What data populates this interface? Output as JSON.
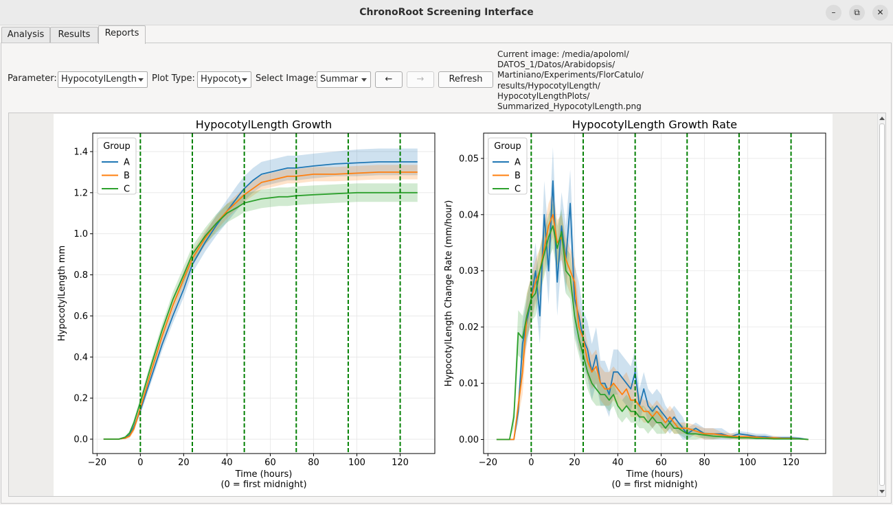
{
  "window": {
    "title": "ChronoRoot Screening Interface",
    "minimize_icon": "minimize-icon",
    "maximize_icon": "maximize-icon",
    "close_icon": "close-icon"
  },
  "tabs": [
    {
      "label": "Analysis",
      "active": false
    },
    {
      "label": "Results",
      "active": false
    },
    {
      "label": "Reports",
      "active": true
    }
  ],
  "controls": {
    "parameter_label": "Parameter:",
    "parameter_value": "HypocotylLength",
    "plot_type_label": "Plot Type:",
    "plot_type_value": "Hypocoty",
    "select_image_label": "Select Image:",
    "select_image_value": "Summar",
    "prev_button": "←",
    "next_button": "→",
    "refresh_button": "Refresh",
    "current_image": "Current image: /media/apoloml/\nDATOS_1/Datos/Arabidopsis/\nMartiniano/Experiments/FlorCatulo/\nresults/HypocotylLength/\nHypocotylLengthPlots/\nSummarized_HypocotylLength.png"
  },
  "colors": {
    "A": "#1f77b4",
    "B": "#ff7f0e",
    "C": "#2ca02c",
    "day_line": "#008000"
  },
  "chart_data": [
    {
      "type": "line",
      "title": "HypocotylLength Growth",
      "xlabel": "Time (hours)\n(0 = first midnight)",
      "ylabel": "HypocotylLength mm",
      "xlim": [
        -22,
        136
      ],
      "ylim": [
        -0.07,
        1.49
      ],
      "xticks": [
        -20,
        0,
        20,
        40,
        60,
        80,
        100,
        120
      ],
      "yticks": [
        0.0,
        0.2,
        0.4,
        0.6,
        0.8,
        1.0,
        1.2,
        1.4
      ],
      "vlines": [
        0,
        24,
        48,
        72,
        96,
        120
      ],
      "grid": true,
      "legend": {
        "title": "Group",
        "position": "top-left"
      },
      "series": [
        {
          "name": "A",
          "x": [
            -17,
            -10,
            -7,
            -5,
            -3,
            0,
            5,
            10,
            15,
            20,
            24,
            30,
            35,
            40,
            45,
            48,
            52,
            56,
            60,
            64,
            68,
            72,
            80,
            90,
            100,
            110,
            120,
            128
          ],
          "y": [
            0,
            0,
            0.005,
            0.02,
            0.06,
            0.14,
            0.3,
            0.46,
            0.6,
            0.73,
            0.85,
            0.96,
            1.04,
            1.11,
            1.18,
            1.22,
            1.26,
            1.29,
            1.3,
            1.31,
            1.32,
            1.32,
            1.33,
            1.34,
            1.345,
            1.35,
            1.35,
            1.35
          ],
          "band": [
            0.002,
            0.002,
            0.005,
            0.01,
            0.015,
            0.02,
            0.025,
            0.03,
            0.035,
            0.04,
            0.04,
            0.045,
            0.05,
            0.055,
            0.06,
            0.06,
            0.06,
            0.06,
            0.06,
            0.06,
            0.06,
            0.06,
            0.06,
            0.06,
            0.065,
            0.065,
            0.065,
            0.065
          ]
        },
        {
          "name": "B",
          "x": [
            -17,
            -10,
            -7,
            -5,
            -3,
            0,
            5,
            10,
            15,
            20,
            24,
            30,
            35,
            40,
            45,
            48,
            52,
            56,
            60,
            64,
            68,
            72,
            80,
            90,
            100,
            110,
            120,
            128
          ],
          "y": [
            0,
            0,
            0.005,
            0.015,
            0.05,
            0.15,
            0.33,
            0.5,
            0.65,
            0.78,
            0.88,
            0.98,
            1.05,
            1.11,
            1.16,
            1.19,
            1.22,
            1.25,
            1.26,
            1.27,
            1.28,
            1.28,
            1.29,
            1.29,
            1.295,
            1.3,
            1.3,
            1.3
          ],
          "band": [
            0.002,
            0.002,
            0.005,
            0.01,
            0.015,
            0.02,
            0.025,
            0.03,
            0.035,
            0.035,
            0.035,
            0.035,
            0.035,
            0.035,
            0.035,
            0.035,
            0.035,
            0.035,
            0.035,
            0.035,
            0.035,
            0.035,
            0.035,
            0.035,
            0.035,
            0.035,
            0.035,
            0.035
          ]
        },
        {
          "name": "C",
          "x": [
            -17,
            -10,
            -7,
            -5,
            -3,
            0,
            5,
            10,
            15,
            20,
            24,
            30,
            35,
            40,
            45,
            48,
            52,
            56,
            60,
            64,
            68,
            72,
            80,
            90,
            100,
            110,
            120,
            128
          ],
          "y": [
            0,
            0,
            0.01,
            0.03,
            0.08,
            0.18,
            0.36,
            0.53,
            0.68,
            0.8,
            0.9,
            0.99,
            1.05,
            1.1,
            1.13,
            1.15,
            1.16,
            1.17,
            1.175,
            1.18,
            1.18,
            1.185,
            1.19,
            1.195,
            1.2,
            1.2,
            1.2,
            1.2
          ],
          "band": [
            0.002,
            0.002,
            0.005,
            0.01,
            0.015,
            0.02,
            0.025,
            0.03,
            0.035,
            0.04,
            0.04,
            0.04,
            0.045,
            0.045,
            0.045,
            0.045,
            0.045,
            0.045,
            0.045,
            0.045,
            0.045,
            0.045,
            0.045,
            0.045,
            0.045,
            0.045,
            0.045,
            0.045
          ]
        }
      ]
    },
    {
      "type": "line",
      "title": "HypocotylLength Growth Rate",
      "xlabel": "Time (hours)\n(0 = first midnight)",
      "ylabel": "HypocotylLength Change Rate (mm/hour)",
      "xlim": [
        -22,
        136
      ],
      "ylim": [
        -0.0025,
        0.0545
      ],
      "xticks": [
        -20,
        0,
        20,
        40,
        60,
        80,
        100,
        120
      ],
      "yticks": [
        0.0,
        0.01,
        0.02,
        0.03,
        0.04,
        0.05
      ],
      "vlines": [
        0,
        24,
        48,
        72,
        96,
        120
      ],
      "grid": true,
      "legend": {
        "title": "Group",
        "position": "top-left"
      },
      "series": [
        {
          "name": "A",
          "x": [
            -16,
            -10,
            -8,
            -6,
            -4,
            -2,
            0,
            2,
            4,
            6,
            8,
            10,
            12,
            14,
            16,
            18,
            20,
            22,
            24,
            26,
            28,
            30,
            32,
            34,
            36,
            38,
            40,
            42,
            44,
            46,
            48,
            50,
            52,
            54,
            56,
            58,
            60,
            62,
            64,
            66,
            68,
            70,
            72,
            76,
            80,
            84,
            88,
            92,
            96,
            100,
            104,
            108,
            112,
            116,
            120,
            124,
            128
          ],
          "y": [
            0,
            0,
            0,
            0.005,
            0.017,
            0.021,
            0.025,
            0.03,
            0.022,
            0.04,
            0.03,
            0.046,
            0.028,
            0.038,
            0.032,
            0.042,
            0.025,
            0.022,
            0.018,
            0.016,
            0.012,
            0.015,
            0.01,
            0.01,
            0.008,
            0.012,
            0.012,
            0.011,
            0.01,
            0.009,
            0.012,
            0.006,
            0.009,
            0.006,
            0.005,
            0.006,
            0.005,
            0.004,
            0.003,
            0.004,
            0.003,
            0.002,
            0.001,
            0.002,
            0.001,
            0.001,
            0.001,
            0.0005,
            0.001,
            0.0008,
            0.0005,
            0.0005,
            0.0003,
            0.0003,
            0.0003,
            0.0002,
            0
          ],
          "band": [
            0,
            0,
            0,
            0.002,
            0.004,
            0.004,
            0.004,
            0.005,
            0.005,
            0.006,
            0.006,
            0.006,
            0.006,
            0.006,
            0.006,
            0.006,
            0.006,
            0.006,
            0.005,
            0.005,
            0.005,
            0.005,
            0.004,
            0.004,
            0.004,
            0.004,
            0.004,
            0.004,
            0.004,
            0.004,
            0.004,
            0.003,
            0.003,
            0.003,
            0.003,
            0.003,
            0.003,
            0.002,
            0.002,
            0.002,
            0.002,
            0.002,
            0.001,
            0.001,
            0.001,
            0.001,
            0.001,
            0.0005,
            0.0005,
            0.0005,
            0.0005,
            0.0005,
            0.0003,
            0.0003,
            0.0003,
            0.0002,
            0
          ]
        },
        {
          "name": "B",
          "x": [
            -16,
            -10,
            -8,
            -6,
            -4,
            -2,
            0,
            2,
            4,
            6,
            8,
            10,
            12,
            14,
            16,
            18,
            20,
            22,
            24,
            26,
            28,
            30,
            32,
            34,
            36,
            38,
            40,
            42,
            44,
            46,
            48,
            50,
            52,
            54,
            56,
            58,
            60,
            62,
            64,
            66,
            68,
            70,
            72,
            76,
            80,
            84,
            88,
            92,
            96,
            100,
            104,
            108,
            112,
            116,
            120,
            124,
            128
          ],
          "y": [
            0,
            0,
            0,
            0.006,
            0.012,
            0.022,
            0.025,
            0.028,
            0.03,
            0.034,
            0.038,
            0.04,
            0.035,
            0.036,
            0.032,
            0.03,
            0.028,
            0.02,
            0.018,
            0.014,
            0.012,
            0.013,
            0.01,
            0.009,
            0.009,
            0.01,
            0.009,
            0.008,
            0.009,
            0.007,
            0.007,
            0.006,
            0.005,
            0.005,
            0.004,
            0.005,
            0.004,
            0.003,
            0.004,
            0.003,
            0.002,
            0.002,
            0.002,
            0.0015,
            0.001,
            0.001,
            0.0008,
            0.0006,
            0.0005,
            0.0005,
            0.0004,
            0.0003,
            0.0003,
            0.0002,
            0.0002,
            0.0001,
            0
          ],
          "band": [
            0,
            0,
            0,
            0.002,
            0.004,
            0.004,
            0.004,
            0.004,
            0.004,
            0.004,
            0.004,
            0.004,
            0.004,
            0.004,
            0.004,
            0.004,
            0.004,
            0.004,
            0.003,
            0.003,
            0.003,
            0.003,
            0.003,
            0.003,
            0.003,
            0.003,
            0.003,
            0.003,
            0.003,
            0.003,
            0.003,
            0.002,
            0.002,
            0.002,
            0.002,
            0.002,
            0.002,
            0.002,
            0.002,
            0.002,
            0.001,
            0.001,
            0.001,
            0.001,
            0.001,
            0.001,
            0.0005,
            0.0005,
            0.0005,
            0.0005,
            0.0003,
            0.0003,
            0.0003,
            0.0002,
            0.0002,
            0.0001,
            0
          ]
        },
        {
          "name": "C",
          "x": [
            -16,
            -10,
            -8,
            -6,
            -4,
            -2,
            0,
            2,
            4,
            6,
            8,
            10,
            12,
            14,
            16,
            18,
            20,
            22,
            24,
            26,
            28,
            30,
            32,
            34,
            36,
            38,
            40,
            42,
            44,
            46,
            48,
            50,
            52,
            54,
            56,
            58,
            60,
            62,
            64,
            66,
            68,
            70,
            72,
            76,
            80,
            84,
            88,
            92,
            96,
            100,
            104,
            108,
            112,
            116,
            120,
            124,
            128
          ],
          "y": [
            0,
            0,
            0.004,
            0.019,
            0.018,
            0.022,
            0.025,
            0.026,
            0.03,
            0.033,
            0.036,
            0.038,
            0.034,
            0.037,
            0.03,
            0.029,
            0.022,
            0.018,
            0.015,
            0.012,
            0.01,
            0.009,
            0.008,
            0.008,
            0.007,
            0.008,
            0.006,
            0.005,
            0.006,
            0.005,
            0.005,
            0.004,
            0.004,
            0.003,
            0.004,
            0.003,
            0.003,
            0.002,
            0.003,
            0.002,
            0.002,
            0.0015,
            0.001,
            0.001,
            0.0008,
            0.0006,
            0.0005,
            0.0004,
            0.0003,
            0.0003,
            0.0002,
            0.0002,
            0.0001,
            0.0001,
            0.0001,
            0.0001,
            0
          ],
          "band": [
            0,
            0,
            0.002,
            0.004,
            0.004,
            0.004,
            0.004,
            0.004,
            0.004,
            0.004,
            0.004,
            0.004,
            0.004,
            0.004,
            0.004,
            0.004,
            0.004,
            0.003,
            0.003,
            0.003,
            0.003,
            0.003,
            0.002,
            0.002,
            0.002,
            0.002,
            0.002,
            0.002,
            0.002,
            0.002,
            0.002,
            0.002,
            0.002,
            0.002,
            0.002,
            0.002,
            0.002,
            0.001,
            0.001,
            0.001,
            0.001,
            0.001,
            0.001,
            0.001,
            0.0005,
            0.0005,
            0.0003,
            0.0003,
            0.0003,
            0.0003,
            0.0002,
            0.0002,
            0.0001,
            0.0001,
            0.0001,
            0.0001,
            0
          ]
        }
      ]
    }
  ]
}
